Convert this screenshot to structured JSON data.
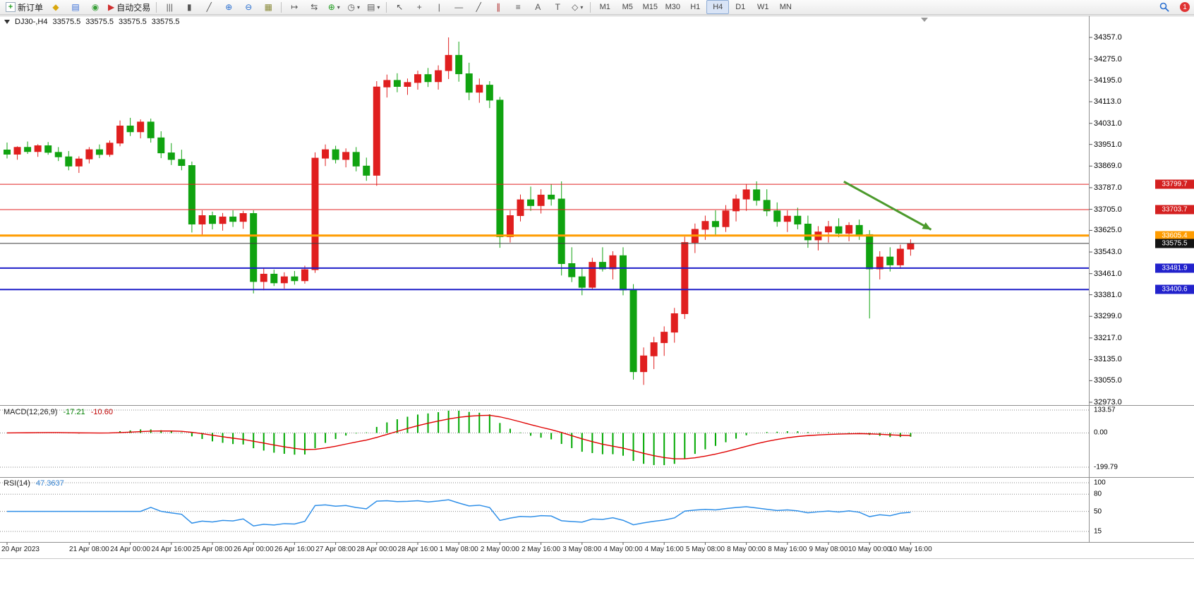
{
  "toolbar": {
    "notification_count": "1",
    "groups": [
      {
        "items": [
          {
            "name": "new-order-button",
            "icon": "new-order",
            "glyph": "+",
            "glyph_color": "#1f9d1f",
            "box": true,
            "label": "新订单"
          },
          {
            "name": "metaeditor-button",
            "icon": "metaeditor",
            "glyph": "◆",
            "glyph_color": "#d9a70e"
          },
          {
            "name": "market-watch-button",
            "icon": "market-watch",
            "glyph": "▤",
            "glyph_color": "#3a6fd8"
          },
          {
            "name": "signals-button",
            "icon": "signals",
            "glyph": "◉",
            "glyph_color": "#3aa03a"
          },
          {
            "name": "autotrading-button",
            "icon": "autotrading-play",
            "glyph": "▶",
            "glyph_color": "#d03030",
            "label": "自动交易"
          }
        ]
      },
      {
        "items": [
          {
            "name": "bar-chart-button",
            "icon": "bar-chart",
            "glyph": "|||"
          },
          {
            "name": "candlestick-chart-button",
            "icon": "candlestick-chart",
            "glyph": "▮"
          },
          {
            "name": "line-chart-button",
            "icon": "line-chart",
            "glyph": "╱"
          },
          {
            "name": "zoom-in-button",
            "icon": "zoom-in",
            "glyph": "⊕",
            "glyph_color": "#2a6fd0"
          },
          {
            "name": "zoom-out-button",
            "icon": "zoom-out",
            "glyph": "⊖",
            "glyph_color": "#2a6fd0"
          },
          {
            "name": "tile-windows-button",
            "icon": "tile-windows",
            "glyph": "▦",
            "glyph_color": "#8a8a3a"
          }
        ]
      },
      {
        "items": [
          {
            "name": "auto-scroll-button",
            "icon": "auto-scroll",
            "glyph": "↦"
          },
          {
            "name": "chart-shift-button",
            "icon": "chart-shift",
            "glyph": "⇆"
          },
          {
            "name": "indicators-button",
            "icon": "add-indicator",
            "glyph": "⊕",
            "glyph_color": "#1f9d1f",
            "dropdown": true
          },
          {
            "name": "periods-button",
            "icon": "clock",
            "glyph": "◷",
            "dropdown": true
          },
          {
            "name": "templates-button",
            "icon": "template",
            "glyph": "▤",
            "dropdown": true
          }
        ]
      },
      {
        "items": [
          {
            "name": "cursor-button",
            "icon": "cursor-arrow",
            "glyph": "↖"
          },
          {
            "name": "crosshair-button",
            "icon": "crosshair",
            "glyph": "+"
          },
          {
            "name": "vertical-line-button",
            "icon": "vertical-line",
            "glyph": "|"
          },
          {
            "name": "horizontal-line-button",
            "icon": "horizontal-line",
            "glyph": "—"
          },
          {
            "name": "trendline-button",
            "icon": "trendline",
            "glyph": "╱"
          },
          {
            "name": "channel-button",
            "icon": "equidistant-channel",
            "glyph": "∥",
            "glyph_color": "#b03030"
          },
          {
            "name": "fibonacci-button",
            "icon": "fibonacci",
            "glyph": "≡"
          },
          {
            "name": "text-button",
            "icon": "text",
            "glyph": "A"
          },
          {
            "name": "label-button",
            "icon": "text-label",
            "glyph": "T"
          },
          {
            "name": "shapes-button",
            "icon": "shapes",
            "glyph": "◇",
            "dropdown": true
          }
        ]
      },
      {
        "items": [
          {
            "name": "timeframe-m1-button",
            "tf": true,
            "label": "M1"
          },
          {
            "name": "timeframe-m5-button",
            "tf": true,
            "label": "M5"
          },
          {
            "name": "timeframe-m15-button",
            "tf": true,
            "label": "M15"
          },
          {
            "name": "timeframe-m30-button",
            "tf": true,
            "label": "M30"
          },
          {
            "name": "timeframe-h1-button",
            "tf": true,
            "label": "H1"
          },
          {
            "name": "timeframe-h4-button",
            "tf": true,
            "label": "H4",
            "active": true
          },
          {
            "name": "timeframe-d1-button",
            "tf": true,
            "label": "D1"
          },
          {
            "name": "timeframe-w1-button",
            "tf": true,
            "label": "W1"
          },
          {
            "name": "timeframe-mn-button",
            "tf": true,
            "label": "MN"
          }
        ]
      }
    ]
  },
  "chart_info": {
    "symbol_period": "DJ30-,H4",
    "open": "33575.5",
    "high": "33575.5",
    "low": "33575.5",
    "close": "33575.5"
  },
  "chart_data": {
    "type": "candlestick",
    "symbol": "DJ30-",
    "timeframe": "H4",
    "bull_color": "#e01f1f",
    "bear_color": "#10a310",
    "y_axis": {
      "max": 34357.0,
      "min": 32973.0,
      "ticks": [
        34357.0,
        34275.0,
        34195.0,
        34113.0,
        34031.0,
        33951.0,
        33869.0,
        33787.0,
        33705.0,
        33625.0,
        33543.0,
        33461.0,
        33381.0,
        33299.0,
        33217.0,
        33135.0,
        33055.0,
        32973.0
      ]
    },
    "x_axis": {
      "labels": [
        {
          "text": "20 Apr 2023",
          "index": 0
        },
        {
          "text": "21 Apr 08:00",
          "index": 8
        },
        {
          "text": "24 Apr 00:00",
          "index": 12
        },
        {
          "text": "24 Apr 16:00",
          "index": 16
        },
        {
          "text": "25 Apr 08:00",
          "index": 20
        },
        {
          "text": "26 Apr 00:00",
          "index": 24
        },
        {
          "text": "26 Apr 16:00",
          "index": 28
        },
        {
          "text": "27 Apr 08:00",
          "index": 32
        },
        {
          "text": "28 Apr 00:00",
          "index": 36
        },
        {
          "text": "28 Apr 16:00",
          "index": 40
        },
        {
          "text": "1 May 08:00",
          "index": 44
        },
        {
          "text": "2 May 00:00",
          "index": 48
        },
        {
          "text": "2 May 16:00",
          "index": 52
        },
        {
          "text": "3 May 08:00",
          "index": 56
        },
        {
          "text": "4 May 00:00",
          "index": 60
        },
        {
          "text": "4 May 16:00",
          "index": 64
        },
        {
          "text": "5 May 08:00",
          "index": 68
        },
        {
          "text": "8 May 00:00",
          "index": 72
        },
        {
          "text": "8 May 16:00",
          "index": 76
        },
        {
          "text": "9 May 08:00",
          "index": 80
        },
        {
          "text": "10 May 00:00",
          "index": 84
        },
        {
          "text": "10 May 16:00",
          "index": 88
        }
      ]
    },
    "candles": [
      [
        33930,
        33958,
        33898,
        33914
      ],
      [
        33914,
        33944,
        33893,
        33940
      ],
      [
        33940,
        33962,
        33915,
        33924
      ],
      [
        33924,
        33952,
        33904,
        33946
      ],
      [
        33946,
        33960,
        33912,
        33921
      ],
      [
        33921,
        33941,
        33888,
        33904
      ],
      [
        33904,
        33926,
        33853,
        33869
      ],
      [
        33869,
        33906,
        33843,
        33896
      ],
      [
        33896,
        33941,
        33879,
        33931
      ],
      [
        33931,
        33951,
        33899,
        33913
      ],
      [
        33913,
        33966,
        33904,
        33956
      ],
      [
        33956,
        34042,
        33944,
        34021
      ],
      [
        34021,
        34052,
        33983,
        33999
      ],
      [
        33999,
        34046,
        33974,
        34036
      ],
      [
        34036,
        34049,
        33958,
        33976
      ],
      [
        33976,
        34001,
        33899,
        33919
      ],
      [
        33919,
        33956,
        33873,
        33894
      ],
      [
        33894,
        33931,
        33853,
        33871
      ],
      [
        33871,
        33886,
        33617,
        33649
      ],
      [
        33649,
        33701,
        33609,
        33681
      ],
      [
        33681,
        33696,
        33629,
        33651
      ],
      [
        33651,
        33691,
        33624,
        33676
      ],
      [
        33676,
        33701,
        33638,
        33659
      ],
      [
        33659,
        33699,
        33631,
        33689
      ],
      [
        33689,
        33701,
        33386,
        33431
      ],
      [
        33431,
        33481,
        33398,
        33459
      ],
      [
        33459,
        33476,
        33414,
        33426
      ],
      [
        33426,
        33466,
        33404,
        33449
      ],
      [
        33449,
        33471,
        33419,
        33434
      ],
      [
        33434,
        33491,
        33423,
        33476
      ],
      [
        33476,
        33921,
        33464,
        33899
      ],
      [
        33899,
        33951,
        33869,
        33931
      ],
      [
        33931,
        33946,
        33879,
        33894
      ],
      [
        33894,
        33936,
        33864,
        33921
      ],
      [
        33921,
        33941,
        33849,
        33869
      ],
      [
        33869,
        33901,
        33813,
        33834
      ],
      [
        33834,
        34191,
        33794,
        34169
      ],
      [
        34169,
        34216,
        34129,
        34194
      ],
      [
        34194,
        34221,
        34149,
        34171
      ],
      [
        34171,
        34201,
        34139,
        34186
      ],
      [
        34186,
        34231,
        34159,
        34216
      ],
      [
        34216,
        34241,
        34169,
        34189
      ],
      [
        34189,
        34251,
        34159,
        34231
      ],
      [
        34231,
        34357,
        34199,
        34289
      ],
      [
        34289,
        34341,
        34189,
        34219
      ],
      [
        34219,
        34261,
        34119,
        34149
      ],
      [
        34149,
        34201,
        34109,
        34176
      ],
      [
        34176,
        34191,
        34089,
        34119
      ],
      [
        34119,
        34131,
        33559,
        33601
      ],
      [
        33601,
        33701,
        33579,
        33681
      ],
      [
        33681,
        33761,
        33659,
        33741
      ],
      [
        33741,
        33791,
        33699,
        33719
      ],
      [
        33719,
        33781,
        33689,
        33759
      ],
      [
        33759,
        33801,
        33719,
        33744
      ],
      [
        33744,
        33811,
        33454,
        33499
      ],
      [
        33499,
        33561,
        33429,
        33449
      ],
      [
        33449,
        33481,
        33379,
        33409
      ],
      [
        33409,
        33521,
        33399,
        33504
      ],
      [
        33504,
        33561,
        33469,
        33479
      ],
      [
        33479,
        33546,
        33439,
        33529
      ],
      [
        33529,
        33561,
        33379,
        33399
      ],
      [
        33399,
        33421,
        33059,
        33089
      ],
      [
        33089,
        33181,
        33039,
        33149
      ],
      [
        33149,
        33221,
        33099,
        33199
      ],
      [
        33199,
        33261,
        33149,
        33239
      ],
      [
        33239,
        33331,
        33199,
        33309
      ],
      [
        33309,
        33601,
        33289,
        33579
      ],
      [
        33579,
        33651,
        33539,
        33629
      ],
      [
        33629,
        33681,
        33589,
        33659
      ],
      [
        33659,
        33701,
        33609,
        33639
      ],
      [
        33639,
        33721,
        33619,
        33699
      ],
      [
        33699,
        33761,
        33659,
        33744
      ],
      [
        33744,
        33801,
        33699,
        33779
      ],
      [
        33779,
        33811,
        33719,
        33739
      ],
      [
        33739,
        33781,
        33679,
        33699
      ],
      [
        33699,
        33731,
        33639,
        33659
      ],
      [
        33659,
        33701,
        33619,
        33679
      ],
      [
        33679,
        33711,
        33629,
        33649
      ],
      [
        33649,
        33681,
        33559,
        33589
      ],
      [
        33589,
        33641,
        33549,
        33619
      ],
      [
        33619,
        33661,
        33579,
        33639
      ],
      [
        33639,
        33671,
        33599,
        33614
      ],
      [
        33614,
        33656,
        33584,
        33644
      ],
      [
        33644,
        33666,
        33589,
        33609
      ],
      [
        33609,
        33626,
        33291,
        33479
      ],
      [
        33479,
        33546,
        33439,
        33524
      ],
      [
        33524,
        33561,
        33469,
        33494
      ],
      [
        33494,
        33571,
        33479,
        33554
      ],
      [
        33554,
        33591,
        33529,
        33575.5
      ]
    ],
    "horizontal_lines": [
      {
        "price": 33799.7,
        "label": "33799.7",
        "color": "#e02020",
        "width": 1,
        "tag_bg": "#d42020"
      },
      {
        "price": 33703.7,
        "label": "33703.7",
        "color": "#e02020",
        "width": 1,
        "tag_bg": "#d42020"
      },
      {
        "price": 33605.4,
        "label": "33605.4",
        "color": "#ff9c00",
        "width": 3,
        "tag_bg": "#ff9c00"
      },
      {
        "price": 33575.5,
        "label": "33575.5",
        "color": "#3c3c3c",
        "width": 1,
        "tag_bg": "#141414"
      },
      {
        "price": 33481.9,
        "label": "33481.9",
        "color": "#1f1fc8",
        "width": 2,
        "tag_bg": "#2222cc"
      },
      {
        "price": 33400.6,
        "label": "33400.6",
        "color": "#1f1fc8",
        "width": 2,
        "tag_bg": "#2222cc"
      }
    ],
    "objects": {
      "arrow": {
        "from": {
          "candle": 81.5,
          "price": 33810
        },
        "to": {
          "candle": 90,
          "price": 33628
        },
        "color": "#4c9a2c"
      }
    },
    "indicators": {
      "macd": {
        "label": "MACD(12,26,9)",
        "main_value": "-17.21",
        "signal_value": "-10.60",
        "fast": 12,
        "slow": 26,
        "signal": 9,
        "histogram_color": "#00a800",
        "signal_color": "#e00000",
        "scale": {
          "max": 133.57,
          "min": -199.79
        },
        "scale_ticks": [
          {
            "text": "133.57",
            "value": 133.57
          },
          {
            "text": "0.00",
            "value": 0
          },
          {
            "text": "-199.79",
            "value": -199.79
          }
        ]
      },
      "rsi": {
        "label": "RSI(14)",
        "value": "47.3637",
        "period": 14,
        "line_color": "#2f8fe8",
        "scale": {
          "max": 100,
          "min": 15
        },
        "scale_ticks": [
          {
            "text": "100",
            "value": 100
          },
          {
            "text": "80",
            "value": 80
          },
          {
            "text": "50",
            "value": 50
          },
          {
            "text": "15",
            "value": 15
          }
        ]
      }
    }
  }
}
